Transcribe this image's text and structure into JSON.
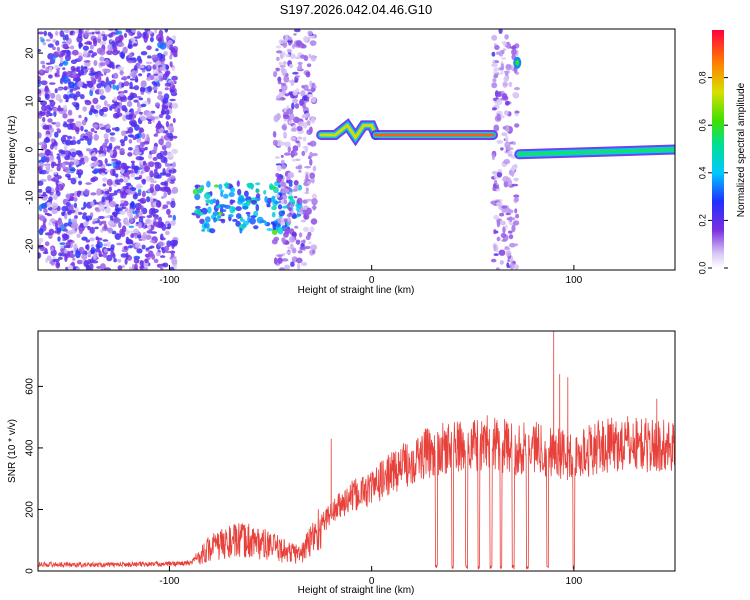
{
  "figure_title": "S197.2026.042.04.46.G10",
  "colors": {
    "snr_line": "#e8403a",
    "axis": "#000000",
    "background": "#ffffff"
  },
  "chart_data": [
    {
      "type": "heatmap",
      "title": "S197.2026.042.04.46.G10",
      "xlabel": "Height of straight line (km)",
      "ylabel": "Frequency (Hz)",
      "xlim": [
        -165,
        150
      ],
      "ylim": [
        -25,
        25
      ],
      "x_ticks": [
        -100,
        0,
        100
      ],
      "x_tick_labels": [
        "-100",
        "0",
        "100"
      ],
      "y_ticks": [
        -20,
        -10,
        0,
        10,
        20
      ],
      "y_tick_labels": [
        "-20",
        "-10",
        "0",
        "10",
        "20"
      ],
      "colorbar": {
        "label": "Normalized spectral amplitude",
        "range": [
          0.0,
          1.0
        ],
        "ticks": [
          0.0,
          0.2,
          0.4,
          0.6,
          0.8
        ],
        "tick_labels": [
          "0.0",
          "0.2",
          "0.4",
          "0.6",
          "0.8"
        ],
        "colormap": "rainbow"
      },
      "regions": [
        {
          "x": [
            -165,
            -97
          ],
          "freq": [
            -25,
            25
          ],
          "amplitude": [
            0.05,
            0.25
          ],
          "pattern": "noise"
        },
        {
          "x": [
            -88,
            -35
          ],
          "freq": [
            -17,
            -7
          ],
          "amplitude": [
            0.2,
            0.5
          ],
          "pattern": "band"
        },
        {
          "x": [
            -48,
            -28
          ],
          "freq": [
            -25,
            25
          ],
          "amplitude": [
            0.05,
            0.15
          ],
          "pattern": "vertical-streak"
        },
        {
          "x": [
            60,
            72
          ],
          "freq": [
            -25,
            25
          ],
          "amplitude": [
            0.05,
            0.15
          ],
          "pattern": "vertical-streak"
        }
      ],
      "ridges": [
        {
          "x": [
            -25,
            -18,
            -12,
            -8,
            -4,
            0,
            2
          ],
          "freq": [
            3,
            3,
            5,
            2.5,
            5,
            5,
            3
          ],
          "amplitude": 0.75
        },
        {
          "x": [
            2,
            60
          ],
          "freq": [
            3,
            3
          ],
          "amplitude": 0.9
        },
        {
          "x": [
            73,
            150
          ],
          "freq": [
            -1,
            0
          ],
          "amplitude": 0.55
        }
      ],
      "spots": [
        {
          "x": 72,
          "freq": 18,
          "amplitude": 0.6
        }
      ]
    },
    {
      "type": "line",
      "xlabel": "Height of straight line (km)",
      "ylabel": "SNR (10 * v/v)",
      "xlim": [
        -165,
        150
      ],
      "ylim": [
        0,
        780
      ],
      "x_ticks": [
        -100,
        0,
        100
      ],
      "x_tick_labels": [
        "-100",
        "0",
        "100"
      ],
      "y_ticks": [
        0,
        200,
        400,
        600
      ],
      "y_tick_labels": [
        "0",
        "200",
        "400",
        "600"
      ],
      "series": [
        {
          "x": [
            -165,
            -140,
            -110,
            -90,
            -80,
            -70,
            -60,
            -50,
            -40,
            -35,
            -30,
            -25,
            -20,
            -10,
            0,
            10,
            20,
            30,
            40,
            50,
            60,
            70,
            80,
            90,
            100,
            110,
            120,
            130,
            140,
            150
          ],
          "values": [
            22,
            20,
            22,
            25,
            75,
            95,
            100,
            80,
            60,
            55,
            100,
            150,
            190,
            240,
            270,
            320,
            360,
            390,
            400,
            410,
            420,
            395,
            405,
            390,
            365,
            400,
            410,
            415,
            405,
            410
          ],
          "spikes": [
            {
              "x": -20,
              "value": 430
            },
            {
              "x": 90,
              "value": 780
            },
            {
              "x": 93,
              "value": 640
            },
            {
              "x": 97,
              "value": 630
            },
            {
              "x": 141,
              "value": 560
            }
          ],
          "dropouts": [
            32,
            40,
            47,
            53,
            59,
            64,
            70,
            77,
            87,
            100
          ]
        }
      ]
    }
  ]
}
